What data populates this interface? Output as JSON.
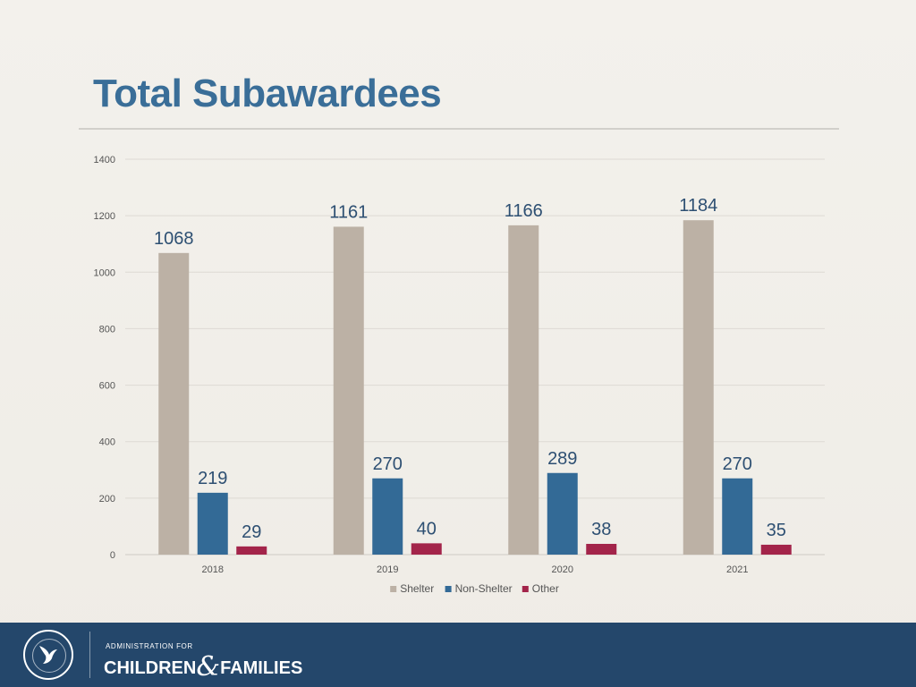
{
  "slide": {
    "title": "Total Subawardees"
  },
  "footer": {
    "admin_text": "ADMINISTRATION FOR",
    "brand_left": "CHILDREN",
    "brand_amp": "&",
    "brand_right": "FAMILIES",
    "seal_icon": "hhs-seal-icon",
    "colors": {
      "background": "#24476b",
      "text": "#ffffff"
    }
  },
  "chart_data": {
    "type": "bar",
    "title": "",
    "xlabel": "",
    "ylabel": "",
    "categories": [
      "2018",
      "2019",
      "2020",
      "2021"
    ],
    "series": [
      {
        "name": "Shelter",
        "values": [
          1068,
          1161,
          1166,
          1184
        ],
        "color": "#bcb1a5"
      },
      {
        "name": "Non-Shelter",
        "values": [
          219,
          270,
          289,
          270
        ],
        "color": "#336a96"
      },
      {
        "name": "Other",
        "values": [
          29,
          40,
          38,
          35
        ],
        "color": "#a3244a"
      }
    ],
    "ylim": [
      0,
      1400
    ],
    "yticks": [
      0,
      200,
      400,
      600,
      800,
      1000,
      1200,
      1400
    ],
    "grid": true,
    "legend": "bottom",
    "data_labels": true
  }
}
